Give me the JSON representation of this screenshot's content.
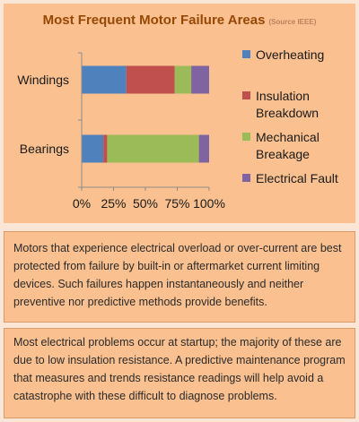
{
  "chart_data": {
    "type": "bar",
    "orientation": "horizontal",
    "stacked": "percent",
    "title": "Most Frequent Motor Failure Areas",
    "subtitle": "(Source IEEE)",
    "categories": [
      "Windings",
      "Bearings"
    ],
    "series": [
      {
        "name": "Overheating",
        "color": "#4f81bd",
        "values": [
          35,
          17
        ]
      },
      {
        "name": "Insulation Breakdown",
        "color": "#c0504d",
        "values": [
          38,
          3
        ]
      },
      {
        "name": "Mechanical Breakage",
        "color": "#9bbb59",
        "values": [
          13,
          72
        ]
      },
      {
        "name": "Electrical Fault",
        "color": "#8064a2",
        "values": [
          14,
          8
        ]
      }
    ],
    "xtick_labels": [
      "0%",
      "25%",
      "50%",
      "75%",
      "100%"
    ],
    "xlim": [
      0,
      100
    ],
    "grid": false,
    "legend_position": "right"
  },
  "legend_lines": [
    [
      "Overheating"
    ],
    [
      "Insulation",
      "Breakdown"
    ],
    [
      "Mechanical",
      "Breakage"
    ],
    [
      "Electrical Fault"
    ]
  ],
  "paragraphs": {
    "p1": "Motors that experience electrical overload or over-current are best protected from failure by built-in or aftermarket current limiting devices. Such failures happen instantaneously and neither preventive nor predictive methods provide benefits.",
    "p2": "Most electrical problems occur at startup; the majority of these are due to low insulation resistance. A predictive maintenance program that measures and trends resistance readings will help avoid a catastrophe with these difficult to diagnose problems."
  }
}
